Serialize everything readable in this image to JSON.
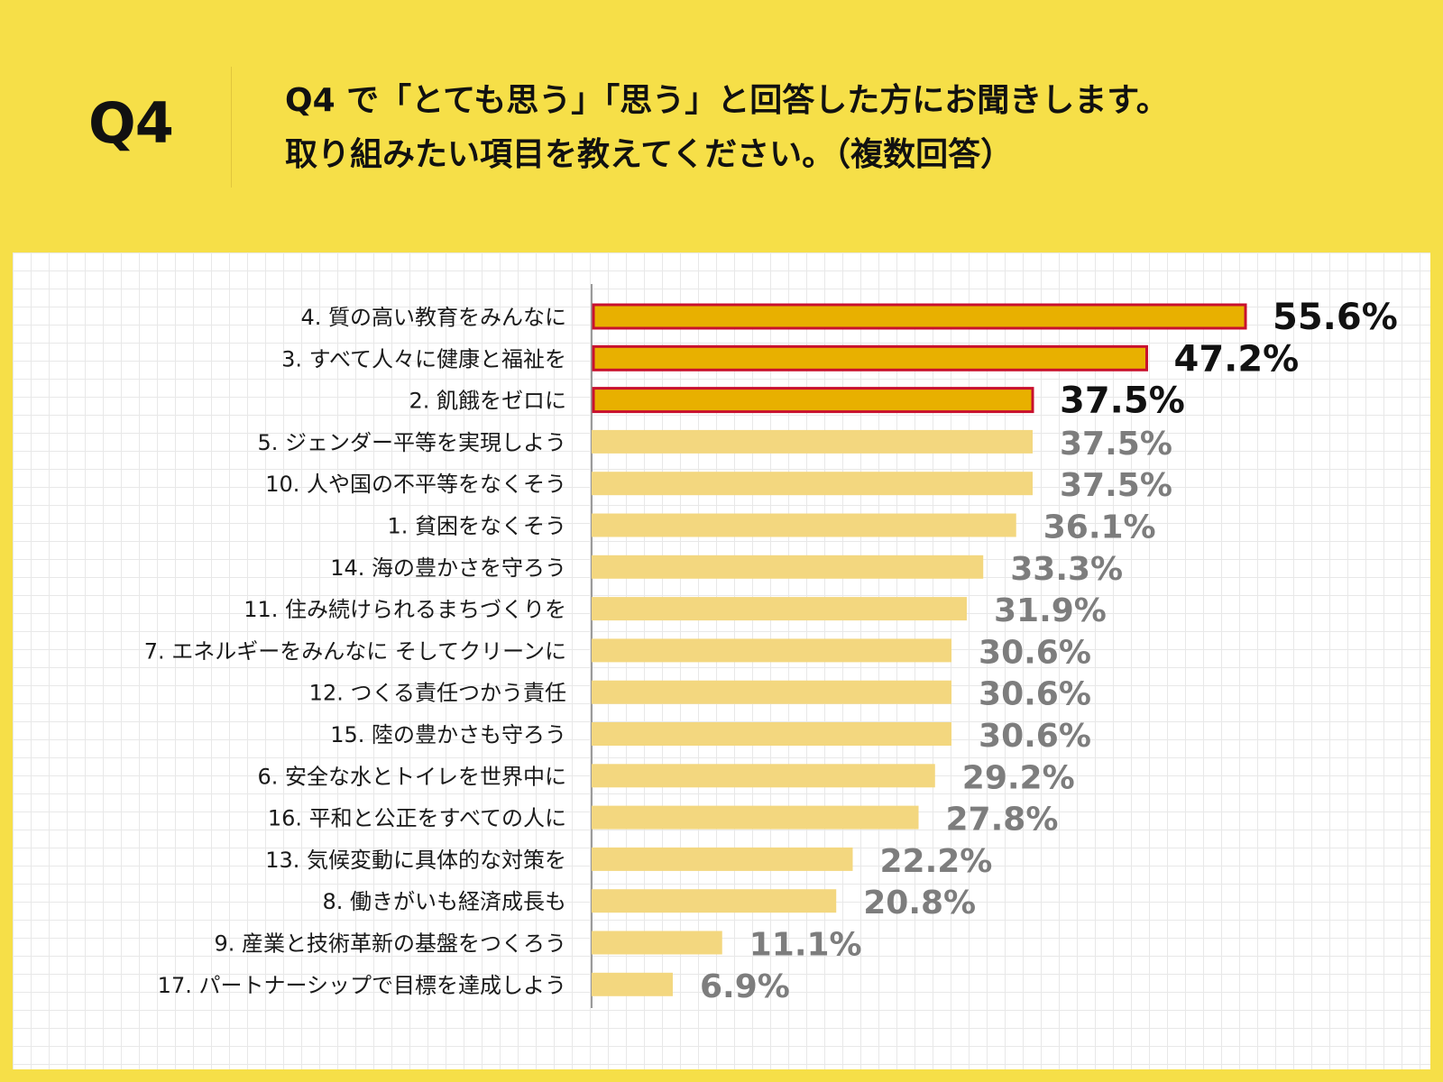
{
  "header": {
    "q_label": "Q4",
    "question_line1": "Q4 で「とても思う」「思う」と回答した方にお聞きします。",
    "question_line2": "取り組みたい項目を教えてください。（複数回答）"
  },
  "colors": {
    "background": "#f6df48",
    "highlight_fill": "#e8b000",
    "highlight_border": "#c8102e",
    "normal_fill": "#f3d77f",
    "highlight_label": "#111111",
    "normal_label": "#7d7d7d"
  },
  "chart_data": {
    "type": "bar",
    "orientation": "horizontal",
    "categories": [
      "4. 質の高い教育をみんなに",
      "3. すべて人々に健康と福祉を",
      "2. 飢餓をゼロに",
      "5. ジェンダー平等を実現しよう",
      "10. 人や国の不平等をなくそう",
      "1. 貧困をなくそう",
      "14. 海の豊かさを守ろう",
      "11. 住み続けられるまちづくりを",
      "7. エネルギーをみんなに そしてクリーンに",
      "12. つくる責任つかう責任",
      "15. 陸の豊かさも守ろう",
      "6. 安全な水とトイレを世界中に",
      "16. 平和と公正をすべての人に",
      "13. 気候変動に具体的な対策を",
      "8. 働きがいも経済成長も",
      "9. 産業と技術革新の基盤をつくろう",
      "17. パートナーシップで目標を達成しよう"
    ],
    "values": [
      55.6,
      47.2,
      37.5,
      37.5,
      37.5,
      36.1,
      33.3,
      31.9,
      30.6,
      30.6,
      30.6,
      29.2,
      27.8,
      22.2,
      20.8,
      11.1,
      6.9
    ],
    "value_labels": [
      "55.6%",
      "47.2%",
      "37.5%",
      "37.5%",
      "37.5%",
      "36.1%",
      "33.3%",
      "31.9%",
      "30.6%",
      "30.6%",
      "30.6%",
      "29.2%",
      "27.8%",
      "22.2%",
      "20.8%",
      "11.1%",
      "6.9%"
    ],
    "highlighted": [
      true,
      true,
      true,
      false,
      false,
      false,
      false,
      false,
      false,
      false,
      false,
      false,
      false,
      false,
      false,
      false,
      false
    ],
    "unit": "%",
    "grid": true,
    "legend": false
  }
}
